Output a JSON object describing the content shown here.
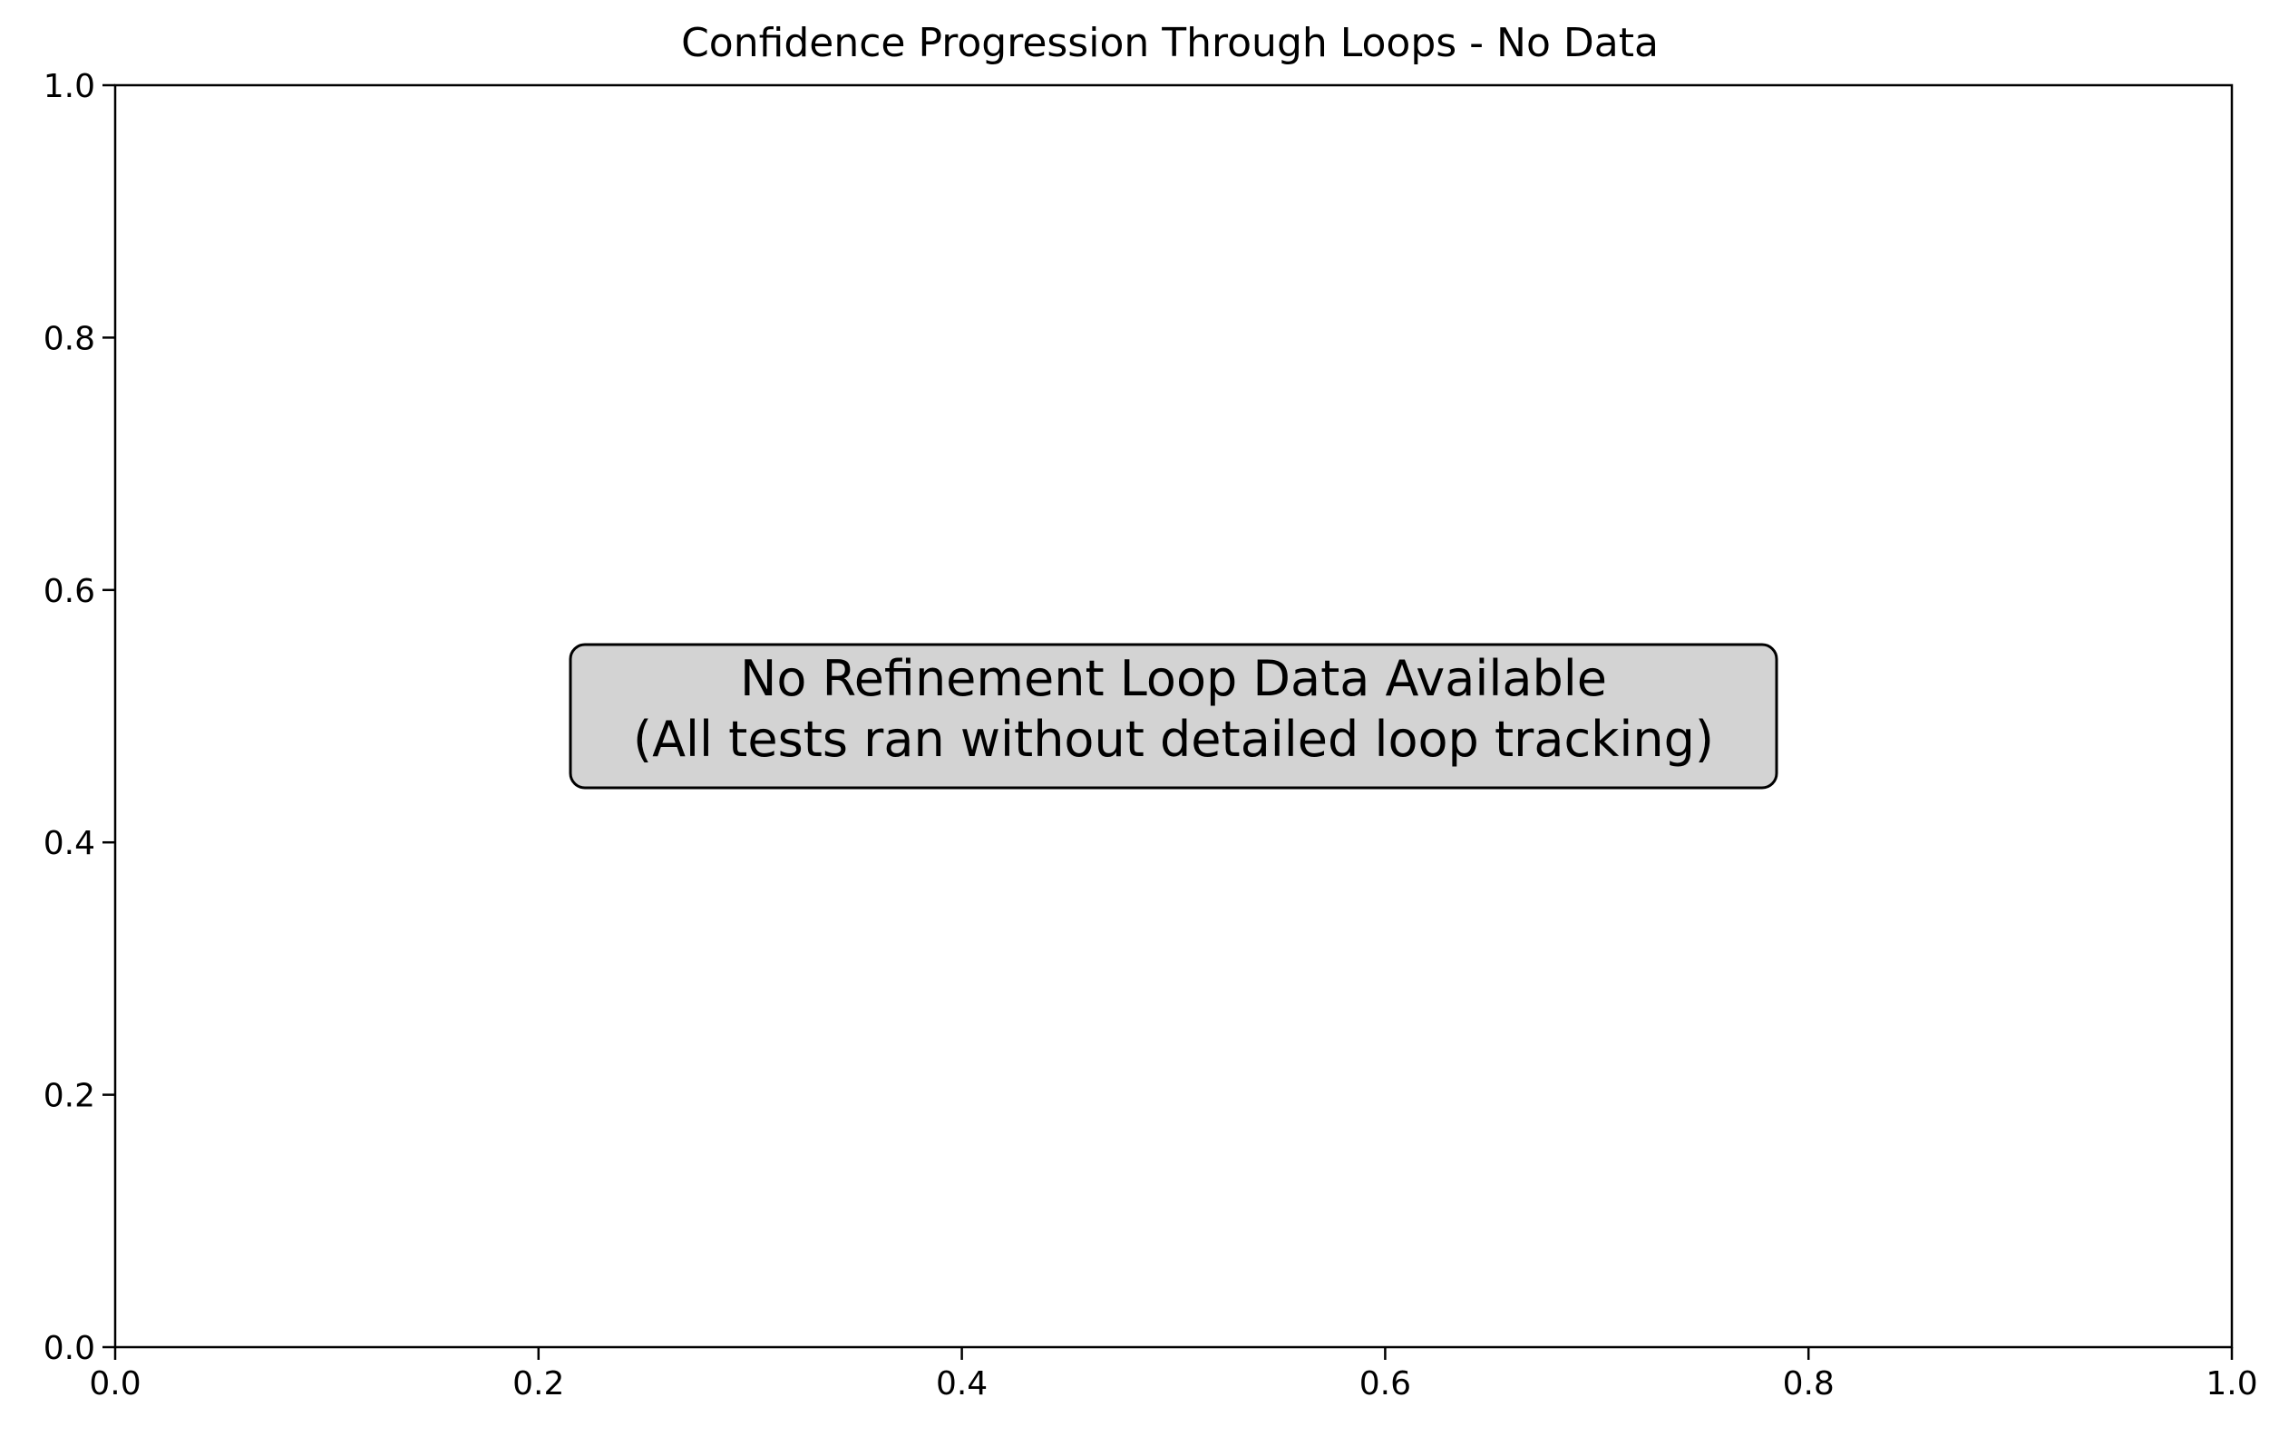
{
  "chart_data": {
    "type": "line",
    "title": "Confidence Progression Through Loops - No Data",
    "xlabel": "",
    "ylabel": "",
    "xlim": [
      0.0,
      1.0
    ],
    "ylim": [
      0.0,
      1.0
    ],
    "x_ticks": [
      0.0,
      0.2,
      0.4,
      0.6,
      0.8,
      1.0
    ],
    "y_ticks": [
      0.0,
      0.2,
      0.4,
      0.6,
      0.8,
      1.0
    ],
    "x_tick_labels": [
      "0.0",
      "0.2",
      "0.4",
      "0.6",
      "0.8",
      "1.0"
    ],
    "y_tick_labels": [
      "0.0",
      "0.2",
      "0.4",
      "0.6",
      "0.8",
      "1.0"
    ],
    "grid": false,
    "series": [],
    "annotation": {
      "lines": [
        "No Refinement Loop Data Available",
        "(All tests ran without detailed loop tracking)"
      ],
      "x": 0.5,
      "y": 0.5,
      "box_color": "#d3d3d3",
      "border_color": "#000000"
    }
  }
}
